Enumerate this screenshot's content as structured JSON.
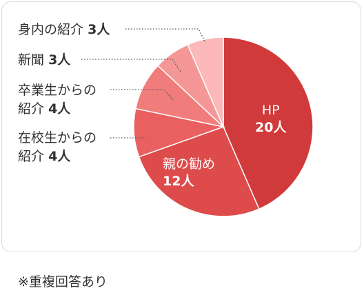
{
  "chart_data": {
    "type": "pie",
    "unit": "人",
    "slices": [
      {
        "label": "HP",
        "value": 20,
        "color": "#d13a3a"
      },
      {
        "label": "親の勧め",
        "value": 12,
        "color": "#de4b4b"
      },
      {
        "label_line1": "在校生からの",
        "label_line2": "紹介",
        "label": "在校生からの紹介",
        "value": 4,
        "color": "#ea5f5f"
      },
      {
        "label_line1": "卒業生からの",
        "label_line2": "紹介",
        "label": "卒業生からの紹介",
        "value": 4,
        "color": "#f07c7c"
      },
      {
        "label": "新聞",
        "value": 3,
        "color": "#f59797"
      },
      {
        "label": "身内の紹介",
        "value": 3,
        "color": "#fbb9b9"
      }
    ]
  },
  "footnote": "※重複回答あり",
  "leader_color": "#555555"
}
